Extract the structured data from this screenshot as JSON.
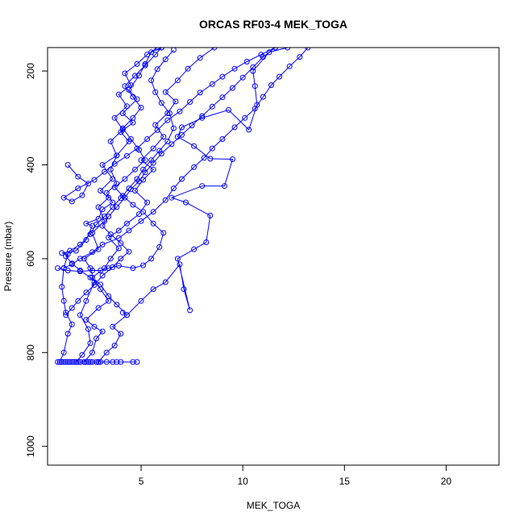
{
  "chart_data": {
    "type": "line",
    "title": "ORCAS RF03-4 MEK_TOGA",
    "xlabel": "MEK_TOGA",
    "ylabel": "Pressure (mbar)",
    "xlim": [
      0.4,
      22.6
    ],
    "ylim": [
      1040,
      150
    ],
    "y_reversed": true,
    "x_ticks": [
      5,
      10,
      15,
      20
    ],
    "y_ticks": [
      200,
      400,
      600,
      800,
      1000
    ],
    "grid": false,
    "legend": "none",
    "series_color": "#0000ff",
    "series": [
      {
        "values": [
          [
            1.0,
            820
          ],
          [
            1.5,
            820
          ],
          [
            2.0,
            820
          ],
          [
            2.4,
            820
          ],
          [
            3.0,
            820
          ],
          [
            2.5,
            820
          ],
          [
            1.8,
            820
          ],
          [
            1.2,
            820
          ],
          [
            1.6,
            820
          ],
          [
            2.2,
            820
          ],
          [
            2.8,
            820
          ],
          [
            3.3,
            820
          ],
          [
            2.0,
            820
          ],
          [
            1.4,
            820
          ],
          [
            1.1,
            820
          ],
          [
            1.9,
            820
          ],
          [
            2.6,
            820
          ],
          [
            3.8,
            820
          ],
          [
            4.6,
            820
          ],
          [
            4.8,
            820
          ],
          [
            4.0,
            820
          ],
          [
            3.6,
            820
          ],
          [
            2.9,
            820
          ],
          [
            2.3,
            820
          ],
          [
            1.7,
            820
          ],
          [
            1.3,
            820
          ],
          [
            0.9,
            820
          ]
        ]
      },
      {
        "values": [
          [
            1.0,
            820
          ],
          [
            1.2,
            800
          ],
          [
            1.4,
            760
          ],
          [
            1.6,
            740
          ],
          [
            1.3,
            715
          ],
          [
            1.2,
            690
          ],
          [
            1.1,
            660
          ],
          [
            1.2,
            620
          ],
          [
            1.4,
            590
          ],
          [
            1.1,
            588
          ],
          [
            1.8,
            583
          ],
          [
            2.3,
            560
          ],
          [
            2.6,
            530
          ],
          [
            2.3,
            525
          ],
          [
            2.9,
            515
          ],
          [
            3.1,
            495
          ],
          [
            3.6,
            480
          ],
          [
            3.3,
            460
          ],
          [
            3.8,
            440
          ],
          [
            3.5,
            410
          ],
          [
            3.8,
            380
          ],
          [
            4.4,
            350
          ],
          [
            4.0,
            330
          ],
          [
            4.6,
            310
          ],
          [
            4.1,
            290
          ],
          [
            4.8,
            260
          ],
          [
            4.4,
            240
          ],
          [
            4.9,
            210
          ],
          [
            5.2,
            185
          ],
          [
            5.5,
            160
          ],
          [
            6.0,
            150
          ]
        ]
      },
      {
        "values": [
          [
            1.8,
            820
          ],
          [
            2.1,
            805
          ],
          [
            2.5,
            780
          ],
          [
            2.4,
            750
          ],
          [
            2.0,
            720
          ],
          [
            2.3,
            690
          ],
          [
            2.7,
            650
          ],
          [
            2.5,
            620
          ],
          [
            2.2,
            600
          ],
          [
            2.9,
            580
          ],
          [
            2.6,
            545
          ],
          [
            3.2,
            520
          ],
          [
            2.9,
            490
          ],
          [
            3.4,
            470
          ],
          [
            3.0,
            455
          ],
          [
            3.6,
            430
          ],
          [
            3.1,
            400
          ],
          [
            3.8,
            380
          ],
          [
            3.5,
            350
          ],
          [
            4.1,
            325
          ],
          [
            3.7,
            300
          ],
          [
            4.3,
            275
          ],
          [
            3.9,
            250
          ],
          [
            4.5,
            230
          ],
          [
            4.2,
            205
          ],
          [
            4.8,
            185
          ],
          [
            5.3,
            165
          ],
          [
            5.8,
            150
          ]
        ]
      },
      {
        "values": [
          [
            2.2,
            820
          ],
          [
            2.6,
            800
          ],
          [
            2.8,
            770
          ],
          [
            3.1,
            755
          ],
          [
            2.7,
            745
          ],
          [
            2.3,
            730
          ],
          [
            2.9,
            705
          ],
          [
            3.4,
            690
          ],
          [
            3.0,
            665
          ],
          [
            2.6,
            640
          ],
          [
            3.2,
            620
          ],
          [
            3.5,
            600
          ],
          [
            3.9,
            578
          ],
          [
            3.4,
            555
          ],
          [
            3.9,
            540
          ],
          [
            4.3,
            525
          ],
          [
            4.9,
            505
          ],
          [
            5.3,
            480
          ],
          [
            4.7,
            455
          ],
          [
            5.1,
            432
          ],
          [
            5.6,
            410
          ],
          [
            5.0,
            390
          ],
          [
            5.6,
            365
          ],
          [
            6.1,
            340
          ],
          [
            5.7,
            315
          ],
          [
            6.3,
            290
          ],
          [
            6.7,
            265
          ],
          [
            6.2,
            245
          ],
          [
            6.8,
            220
          ],
          [
            7.3,
            195
          ],
          [
            7.9,
            172
          ],
          [
            8.6,
            150
          ]
        ]
      },
      {
        "values": [
          [
            2.9,
            820
          ],
          [
            3.3,
            800
          ],
          [
            3.7,
            785
          ],
          [
            4.0,
            760
          ],
          [
            3.6,
            745
          ],
          [
            4.3,
            720
          ],
          [
            5.0,
            690
          ],
          [
            5.6,
            665
          ],
          [
            6.2,
            650
          ],
          [
            6.9,
            612
          ],
          [
            7.1,
            665
          ],
          [
            7.4,
            710
          ],
          [
            6.8,
            600
          ],
          [
            7.6,
            580
          ],
          [
            8.2,
            565
          ],
          [
            8.4,
            508
          ],
          [
            7.2,
            480
          ],
          [
            6.5,
            470
          ],
          [
            8.0,
            445
          ],
          [
            9.1,
            445
          ],
          [
            9.5,
            388
          ],
          [
            8.4,
            387
          ],
          [
            7.6,
            360
          ],
          [
            6.8,
            340
          ],
          [
            7.0,
            320
          ],
          [
            8.0,
            300
          ],
          [
            9.3,
            283
          ],
          [
            10.3,
            325
          ],
          [
            10.7,
            272
          ],
          [
            10.6,
            232
          ],
          [
            10.5,
            200
          ],
          [
            11.3,
            160
          ],
          [
            12.2,
            150
          ]
        ]
      },
      {
        "values": [
          [
            1.2,
            620
          ],
          [
            1.6,
            612
          ],
          [
            2.0,
            600
          ],
          [
            2.6,
            586
          ],
          [
            3.1,
            570
          ],
          [
            3.9,
            556
          ],
          [
            4.4,
            540
          ],
          [
            5.0,
            520
          ],
          [
            5.6,
            500
          ],
          [
            6.2,
            475
          ],
          [
            6.6,
            450
          ],
          [
            7.0,
            430
          ],
          [
            7.6,
            405
          ],
          [
            8.1,
            385
          ],
          [
            8.5,
            365
          ],
          [
            9.0,
            345
          ],
          [
            9.6,
            320
          ],
          [
            10.1,
            300
          ],
          [
            10.6,
            280
          ],
          [
            11.0,
            255
          ],
          [
            11.4,
            230
          ],
          [
            11.8,
            212
          ],
          [
            12.3,
            190
          ],
          [
            12.8,
            170
          ],
          [
            13.2,
            150
          ]
        ]
      },
      {
        "values": [
          [
            1.4,
            400
          ],
          [
            1.9,
            425
          ],
          [
            2.4,
            440
          ],
          [
            2.1,
            465
          ],
          [
            1.6,
            478
          ],
          [
            1.2,
            470
          ],
          [
            1.9,
            450
          ],
          [
            2.7,
            432
          ],
          [
            3.2,
            415
          ],
          [
            3.7,
            398
          ],
          [
            4.3,
            381
          ],
          [
            4.8,
            365
          ],
          [
            5.3,
            345
          ],
          [
            5.8,
            326
          ],
          [
            6.3,
            305
          ],
          [
            6.9,
            286
          ],
          [
            7.4,
            266
          ],
          [
            7.9,
            246
          ],
          [
            8.5,
            228
          ],
          [
            9.0,
            212
          ],
          [
            9.6,
            195
          ],
          [
            10.2,
            180
          ],
          [
            10.9,
            165
          ],
          [
            11.6,
            150
          ]
        ]
      },
      {
        "values": [
          [
            4.1,
            715
          ],
          [
            4.3,
            720
          ],
          [
            3.8,
            698
          ],
          [
            3.4,
            680
          ],
          [
            3.0,
            655
          ],
          [
            2.5,
            640
          ],
          [
            2.0,
            625
          ],
          [
            1.6,
            610
          ],
          [
            1.3,
            595
          ],
          [
            1.5,
            583
          ],
          [
            2.0,
            570
          ],
          [
            2.5,
            548
          ],
          [
            2.8,
            527
          ],
          [
            3.2,
            510
          ],
          [
            3.6,
            490
          ],
          [
            4.0,
            471
          ],
          [
            4.4,
            450
          ],
          [
            4.8,
            430
          ],
          [
            5.1,
            410
          ],
          [
            5.5,
            390
          ],
          [
            5.9,
            370
          ],
          [
            6.3,
            350
          ],
          [
            6.6,
            322
          ],
          [
            6.4,
            290
          ],
          [
            6.0,
            268
          ],
          [
            5.7,
            245
          ],
          [
            5.5,
            220
          ],
          [
            5.8,
            196
          ],
          [
            6.2,
            175
          ],
          [
            6.6,
            155
          ]
        ]
      },
      {
        "values": [
          [
            0.9,
            620
          ],
          [
            1.4,
            625
          ],
          [
            2.0,
            627
          ],
          [
            2.6,
            625
          ],
          [
            3.0,
            625
          ],
          [
            3.4,
            620
          ],
          [
            3.9,
            615
          ],
          [
            4.6,
            620
          ],
          [
            5.1,
            614
          ],
          [
            5.5,
            600
          ],
          [
            5.9,
            575
          ],
          [
            6.1,
            545
          ],
          [
            5.6,
            525
          ],
          [
            5.1,
            500
          ],
          [
            4.6,
            485
          ],
          [
            4.1,
            466
          ],
          [
            3.7,
            448
          ],
          [
            4.2,
            430
          ],
          [
            4.7,
            410
          ],
          [
            5.2,
            390
          ],
          [
            4.9,
            368
          ],
          [
            4.5,
            345
          ],
          [
            4.1,
            322
          ],
          [
            4.6,
            300
          ],
          [
            5.0,
            278
          ],
          [
            4.6,
            255
          ],
          [
            4.2,
            232
          ],
          [
            4.7,
            210
          ],
          [
            5.2,
            188
          ],
          [
            5.7,
            165
          ],
          [
            6.0,
            150
          ]
        ]
      },
      {
        "values": [
          [
            1.3,
            720
          ],
          [
            1.6,
            705
          ],
          [
            1.9,
            690
          ],
          [
            2.3,
            672
          ],
          [
            2.7,
            656
          ],
          [
            3.1,
            636
          ],
          [
            3.6,
            618
          ],
          [
            4.0,
            600
          ],
          [
            4.4,
            585
          ],
          [
            4.0,
            567
          ],
          [
            3.5,
            548
          ],
          [
            3.1,
            530
          ],
          [
            3.4,
            510
          ],
          [
            3.8,
            490
          ],
          [
            4.2,
            470
          ],
          [
            4.5,
            452
          ],
          [
            4.9,
            435
          ],
          [
            5.2,
            416
          ],
          [
            5.6,
            396
          ],
          [
            6.0,
            376
          ],
          [
            6.5,
            356
          ],
          [
            7.0,
            336
          ],
          [
            7.5,
            316
          ],
          [
            8.0,
            296
          ],
          [
            8.5,
            276
          ],
          [
            9.0,
            256
          ],
          [
            9.5,
            236
          ],
          [
            10.0,
            214
          ],
          [
            10.5,
            192
          ],
          [
            11.0,
            170
          ],
          [
            11.6,
            150
          ]
        ]
      }
    ]
  }
}
